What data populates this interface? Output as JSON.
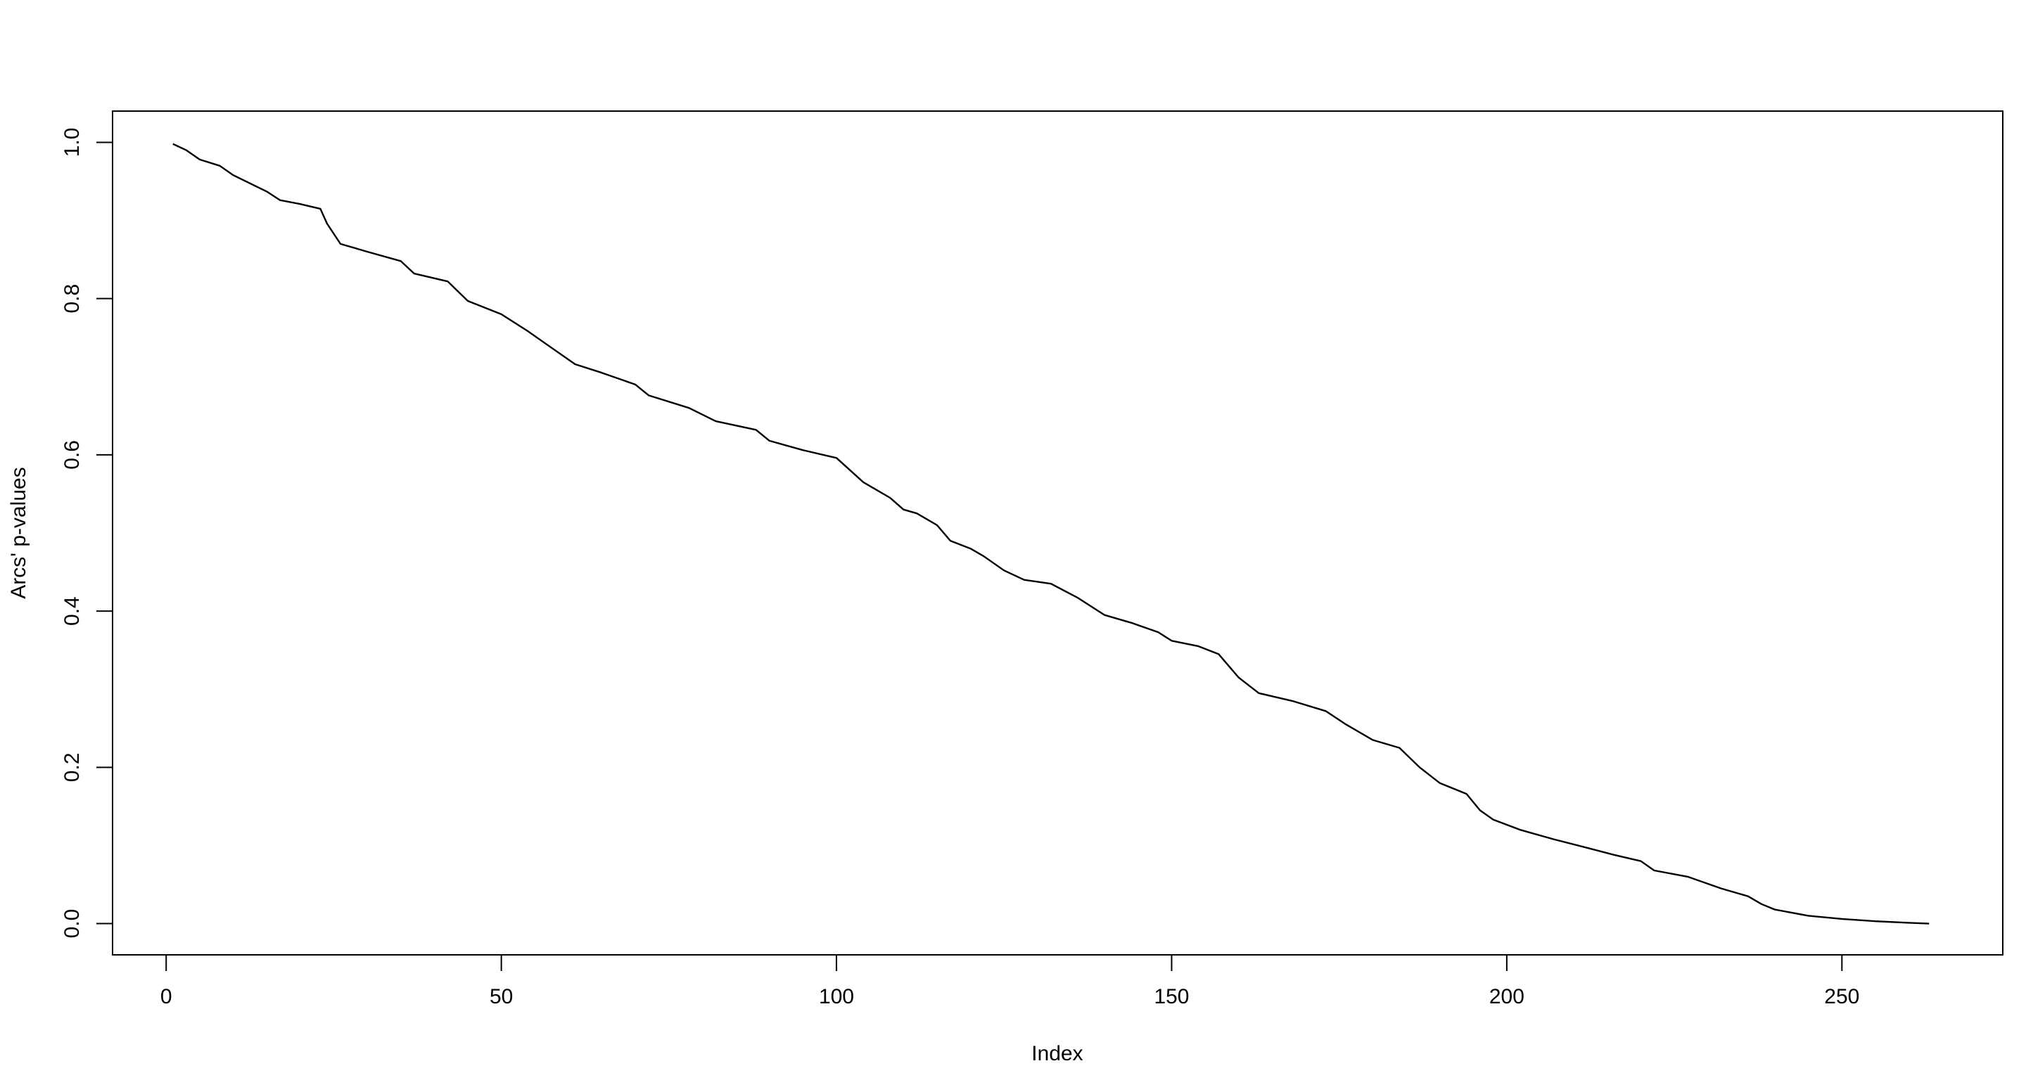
{
  "chart_data": {
    "type": "line",
    "title": "",
    "xlabel": "Index",
    "ylabel": "Arcs' p-values",
    "xlim": [
      -8,
      274
    ],
    "ylim": [
      -0.04,
      1.04
    ],
    "xticks": [
      0,
      50,
      100,
      150,
      200,
      250
    ],
    "xtick_labels": [
      "0",
      "50",
      "100",
      "150",
      "200",
      "250"
    ],
    "yticks": [
      0.0,
      0.2,
      0.4,
      0.6,
      0.8,
      1.0
    ],
    "ytick_labels": [
      "0.0",
      "0.2",
      "0.4",
      "0.6",
      "0.8",
      "1.0"
    ],
    "grid": false,
    "line_color": "#000000",
    "series": [
      {
        "x": [
          1,
          3,
          5,
          8,
          10,
          15,
          17,
          20,
          23,
          24,
          26,
          30,
          35,
          37,
          42,
          45,
          50,
          54,
          57,
          61,
          65,
          70,
          72,
          78,
          82,
          88,
          90,
          95,
          100,
          104,
          108,
          110,
          112,
          115,
          117,
          120,
          122,
          125,
          128,
          132,
          136,
          140,
          144,
          148,
          150,
          154,
          157,
          160,
          163,
          168,
          173,
          176,
          180,
          184,
          187,
          190,
          194,
          196,
          198,
          202,
          207,
          212,
          216,
          220,
          222,
          227,
          232,
          236,
          238,
          240,
          245,
          250,
          255,
          260,
          263
        ],
        "y": [
          0.998,
          0.99,
          0.978,
          0.97,
          0.958,
          0.937,
          0.926,
          0.921,
          0.915,
          0.896,
          0.87,
          0.86,
          0.848,
          0.832,
          0.822,
          0.797,
          0.78,
          0.758,
          0.74,
          0.716,
          0.705,
          0.69,
          0.676,
          0.66,
          0.643,
          0.632,
          0.618,
          0.606,
          0.596,
          0.565,
          0.545,
          0.53,
          0.525,
          0.51,
          0.49,
          0.48,
          0.47,
          0.452,
          0.44,
          0.435,
          0.417,
          0.395,
          0.385,
          0.373,
          0.362,
          0.355,
          0.345,
          0.315,
          0.295,
          0.285,
          0.272,
          0.255,
          0.235,
          0.225,
          0.2,
          0.18,
          0.166,
          0.145,
          0.133,
          0.12,
          0.108,
          0.097,
          0.088,
          0.08,
          0.068,
          0.06,
          0.045,
          0.035,
          0.025,
          0.018,
          0.01,
          0.006,
          0.003,
          0.001,
          0.0
        ]
      }
    ]
  }
}
